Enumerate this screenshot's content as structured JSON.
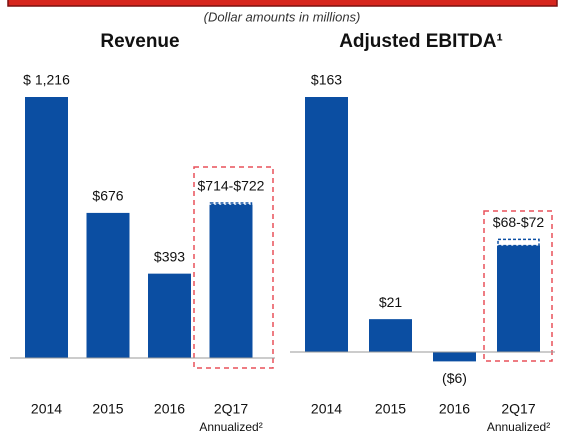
{
  "subtitle": "(Dollar amounts in millions)",
  "chart_data": [
    {
      "type": "bar",
      "title": "Revenue",
      "color": "#0b4ea2",
      "categories": [
        "2014",
        "2015",
        "2016",
        "2Q17"
      ],
      "values": [
        1216,
        676,
        393,
        714
      ],
      "high_values": [
        null,
        null,
        null,
        722
      ],
      "value_labels": [
        "$ 1,216",
        "$676",
        "$393",
        "$714-$722"
      ],
      "annotation": "Annualized²"
    },
    {
      "type": "bar",
      "title": "Adjusted EBITDA¹",
      "color": "#0b4ea2",
      "categories": [
        "2014",
        "2015",
        "2016",
        "2Q17"
      ],
      "values": [
        163,
        21,
        -6,
        68
      ],
      "high_values": [
        null,
        null,
        null,
        72
      ],
      "value_labels": [
        "$163",
        "$21",
        "($6)",
        "$68-$72"
      ],
      "annotation": "Annualized²"
    }
  ]
}
